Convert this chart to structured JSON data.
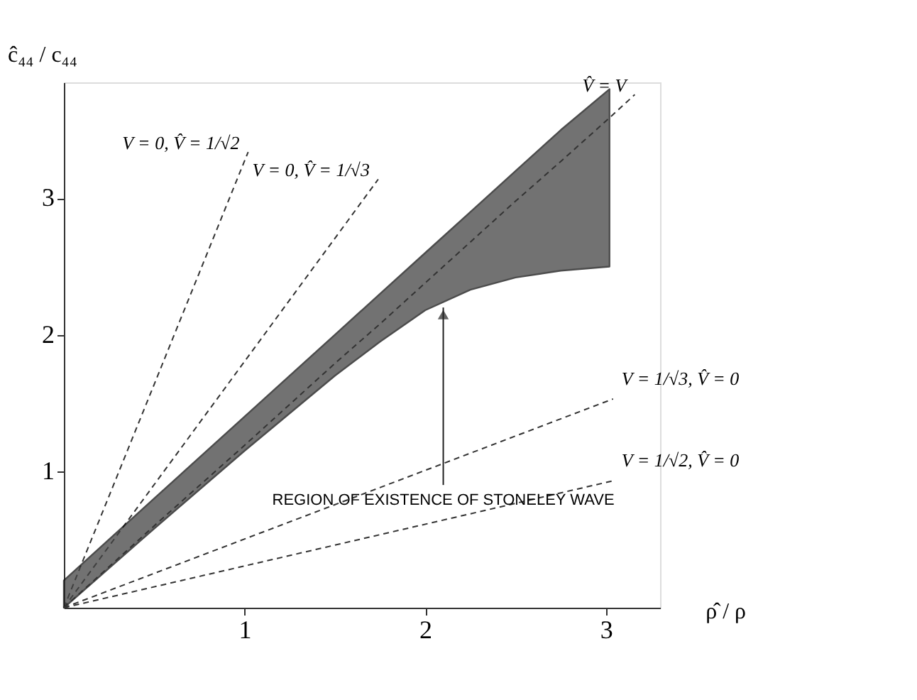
{
  "chart_data": {
    "type": "line",
    "xlabel": "ρ̂ / ρ",
    "ylabel": "ĉ₄₄ / c₄₄",
    "xlim": [
      0,
      3.3
    ],
    "ylim": [
      0,
      3.85
    ],
    "xticks": [
      1,
      2,
      3
    ],
    "yticks": [
      1,
      2,
      3
    ],
    "grid": false,
    "marker": "none",
    "series": [
      {
        "name": "V = 0, V̂ = 1/√2",
        "color": "#333333",
        "line_style": "dashed",
        "x": [
          0,
          1.02
        ],
        "values": [
          0,
          3.34
        ]
      },
      {
        "name": "V = 0, V̂ = 1/√3",
        "color": "#333333",
        "line_style": "dashed",
        "x": [
          0,
          1.74
        ],
        "values": [
          0,
          3.14
        ]
      },
      {
        "name": "V̂ = V",
        "color": "#333333",
        "line_style": "dashed",
        "x": [
          0,
          0.5,
          1,
          1.5,
          1.75,
          2,
          2.25,
          2.5,
          2.75,
          3.02,
          3.16
        ],
        "values": [
          0,
          0.6,
          1.19,
          1.79,
          2.08,
          2.38,
          2.68,
          2.98,
          3.27,
          3.59,
          3.76
        ],
        "lower": [
          0,
          0.58,
          1.15,
          1.7,
          1.95,
          2.18,
          2.33,
          2.42,
          2.47,
          2.5,
          null
        ],
        "upper": [
          0.2,
          0.8,
          1.4,
          2.0,
          2.3,
          2.6,
          2.9,
          3.2,
          3.5,
          3.8,
          null
        ]
      },
      {
        "name": "V = 1/√3, V̂ = 0",
        "color": "#333333",
        "line_style": "dashed",
        "x": [
          0,
          3.04
        ],
        "values": [
          0,
          1.53
        ]
      },
      {
        "name": "V = 1/√2, V̂ = 0",
        "color": "#333333",
        "line_style": "dashed",
        "x": [
          0,
          3.04
        ],
        "values": [
          0,
          0.93
        ]
      }
    ],
    "annotations": [
      {
        "text": "REGION OF EXISTENCE OF STONELEY WAVE",
        "x": 2.1,
        "y": 2.2
      }
    ]
  }
}
